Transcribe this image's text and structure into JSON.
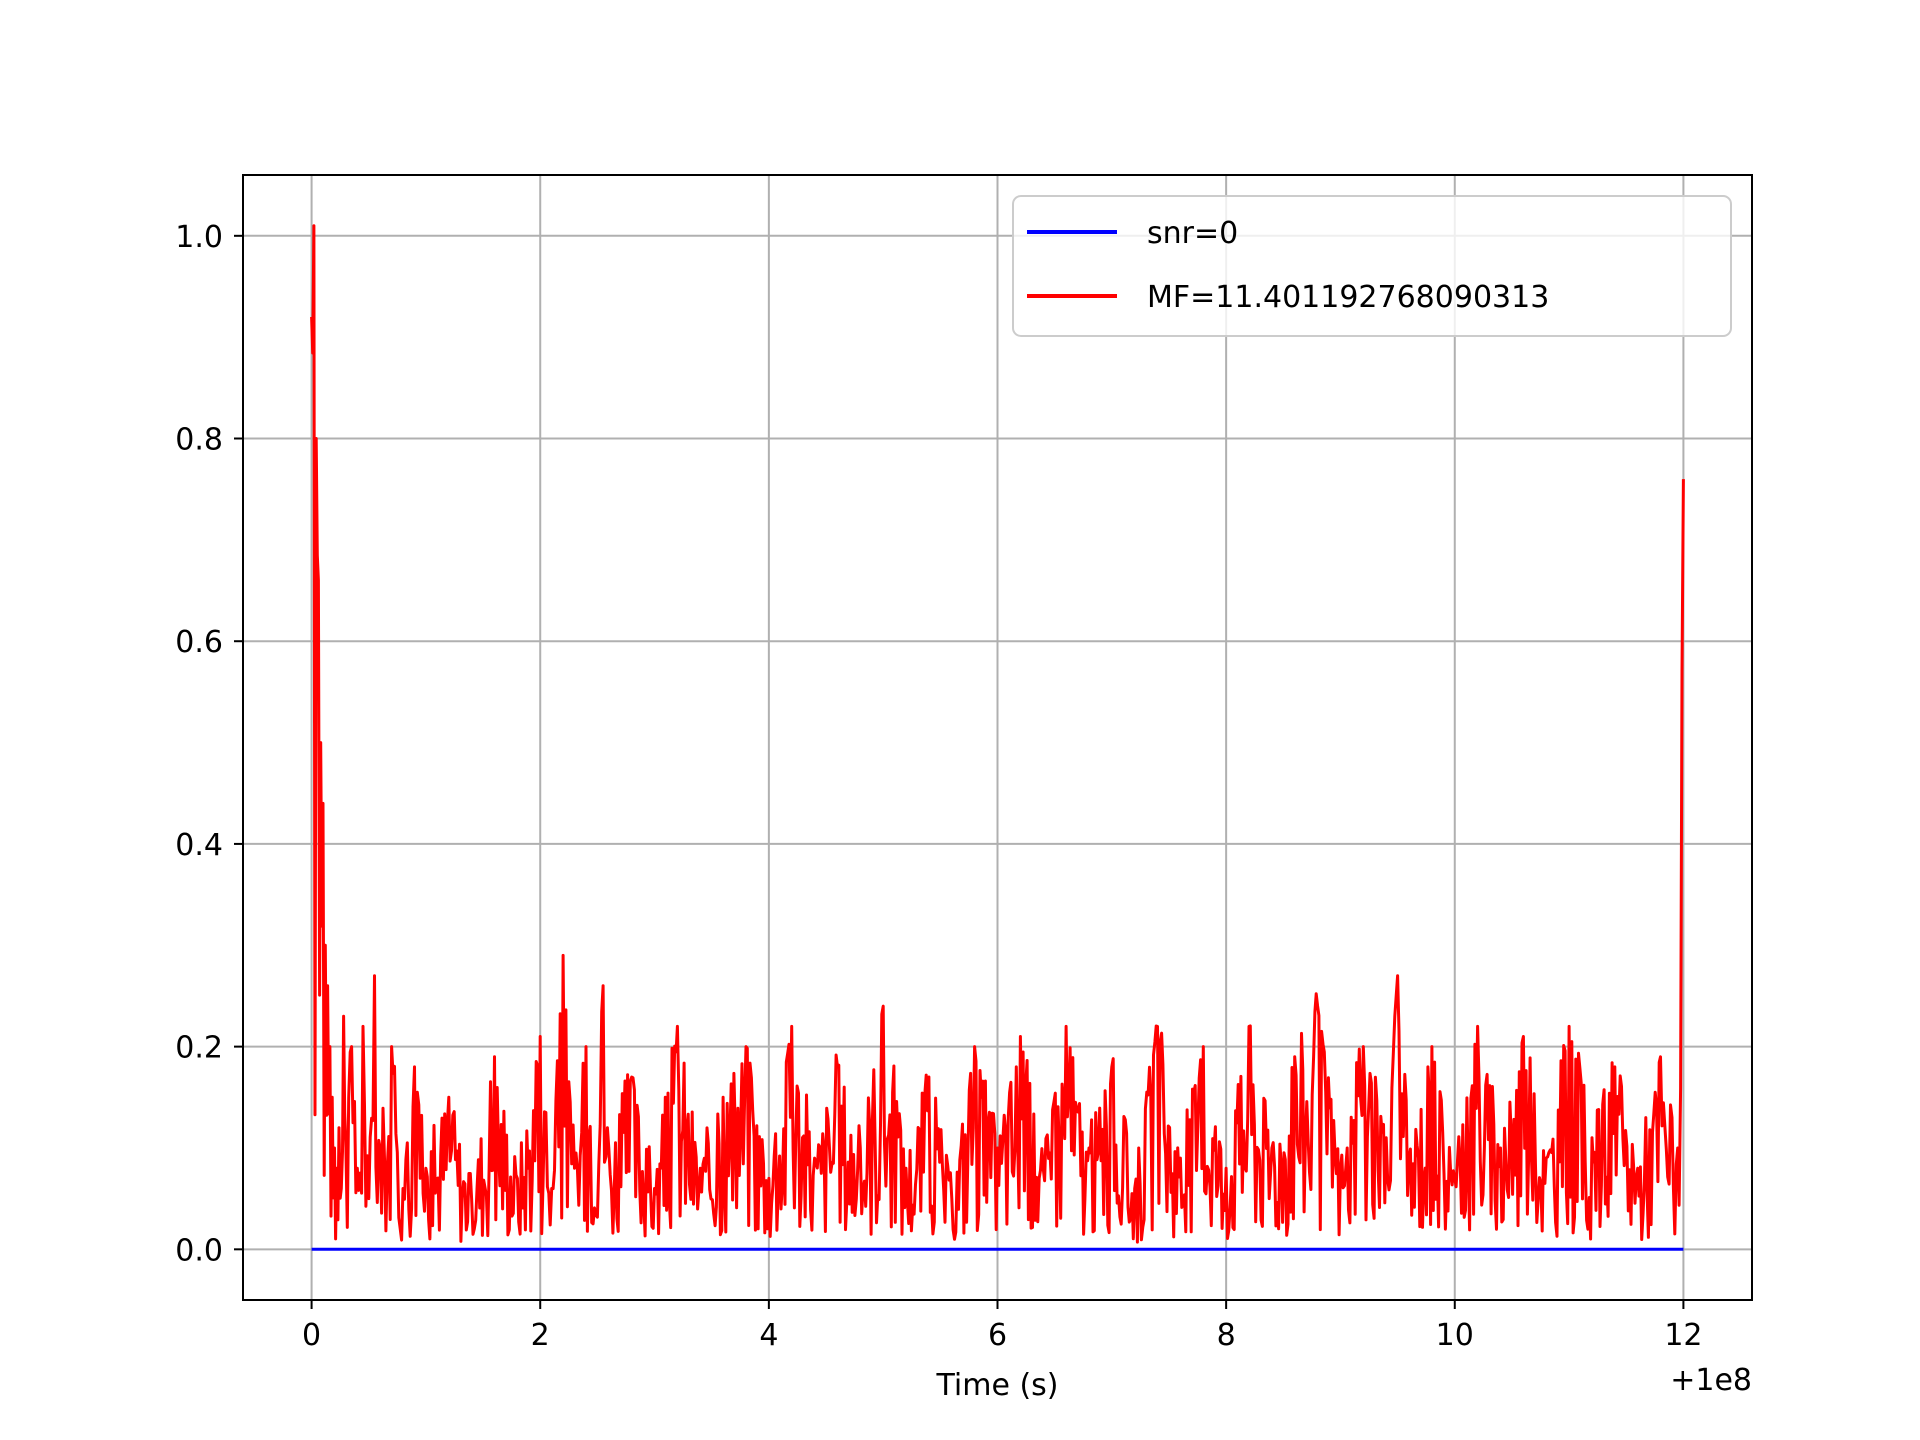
{
  "chart_data": {
    "type": "line",
    "xlabel": "Time (s)",
    "ylabel": "",
    "x_offset_label": "+1e8",
    "xlim": [
      -0.6,
      12.6
    ],
    "ylim": [
      -0.05,
      1.06
    ],
    "x_ticks": [
      0,
      2,
      4,
      6,
      8,
      10,
      12
    ],
    "x_tick_labels": [
      "0",
      "2",
      "4",
      "6",
      "8",
      "10",
      "12"
    ],
    "y_ticks": [
      0.0,
      0.2,
      0.4,
      0.6,
      0.8,
      1.0
    ],
    "y_tick_labels": [
      "0.0",
      "0.2",
      "0.4",
      "0.6",
      "0.8",
      "1.0"
    ],
    "grid": true,
    "legend_position": "top-right",
    "series": [
      {
        "name": "snr=0",
        "color": "#0000ff",
        "x": [
          0,
          12
        ],
        "y": [
          0,
          0
        ]
      },
      {
        "name": "MF=11.401192768090313",
        "color": "#ff0000",
        "x": [
          0.0,
          0.02,
          0.04,
          0.06,
          0.08,
          0.1,
          0.12,
          0.14,
          0.16,
          0.18,
          0.2,
          0.22,
          0.24,
          0.26,
          0.28,
          0.3,
          0.35,
          0.4,
          0.45,
          0.5,
          0.55,
          0.6,
          0.7,
          0.8,
          0.9,
          1.0,
          1.2,
          1.4,
          1.6,
          1.8,
          2.0,
          2.1,
          2.2,
          2.3,
          2.4,
          2.55,
          2.6,
          2.8,
          3.0,
          3.2,
          3.4,
          3.6,
          3.8,
          4.0,
          4.2,
          4.4,
          4.6,
          4.8,
          5.0,
          5.2,
          5.4,
          5.6,
          5.8,
          6.0,
          6.2,
          6.4,
          6.6,
          6.8,
          7.0,
          7.2,
          7.4,
          7.6,
          7.8,
          8.0,
          8.2,
          8.4,
          8.6,
          8.8,
          9.0,
          9.2,
          9.4,
          9.5,
          9.6,
          9.8,
          10.0,
          10.2,
          10.4,
          10.6,
          10.8,
          11.0,
          11.2,
          11.4,
          11.6,
          11.8,
          11.95,
          12.0
        ],
        "y": [
          0.92,
          1.01,
          0.8,
          0.66,
          0.5,
          0.44,
          0.3,
          0.26,
          0.2,
          0.15,
          0.1,
          0.08,
          0.12,
          0.06,
          0.23,
          0.1,
          0.2,
          0.08,
          0.22,
          0.05,
          0.27,
          0.1,
          0.2,
          0.06,
          0.18,
          0.08,
          0.15,
          0.05,
          0.19,
          0.07,
          0.21,
          0.06,
          0.29,
          0.08,
          0.2,
          0.26,
          0.1,
          0.17,
          0.06,
          0.22,
          0.08,
          0.15,
          0.2,
          0.07,
          0.22,
          0.09,
          0.18,
          0.1,
          0.24,
          0.08,
          0.17,
          0.05,
          0.2,
          0.1,
          0.21,
          0.08,
          0.22,
          0.1,
          0.18,
          0.06,
          0.22,
          0.09,
          0.2,
          0.08,
          0.22,
          0.1,
          0.19,
          0.24,
          0.08,
          0.2,
          0.11,
          0.27,
          0.09,
          0.2,
          0.07,
          0.22,
          0.1,
          0.21,
          0.09,
          0.22,
          0.11,
          0.18,
          0.08,
          0.19,
          0.1,
          0.76
        ]
      }
    ]
  }
}
